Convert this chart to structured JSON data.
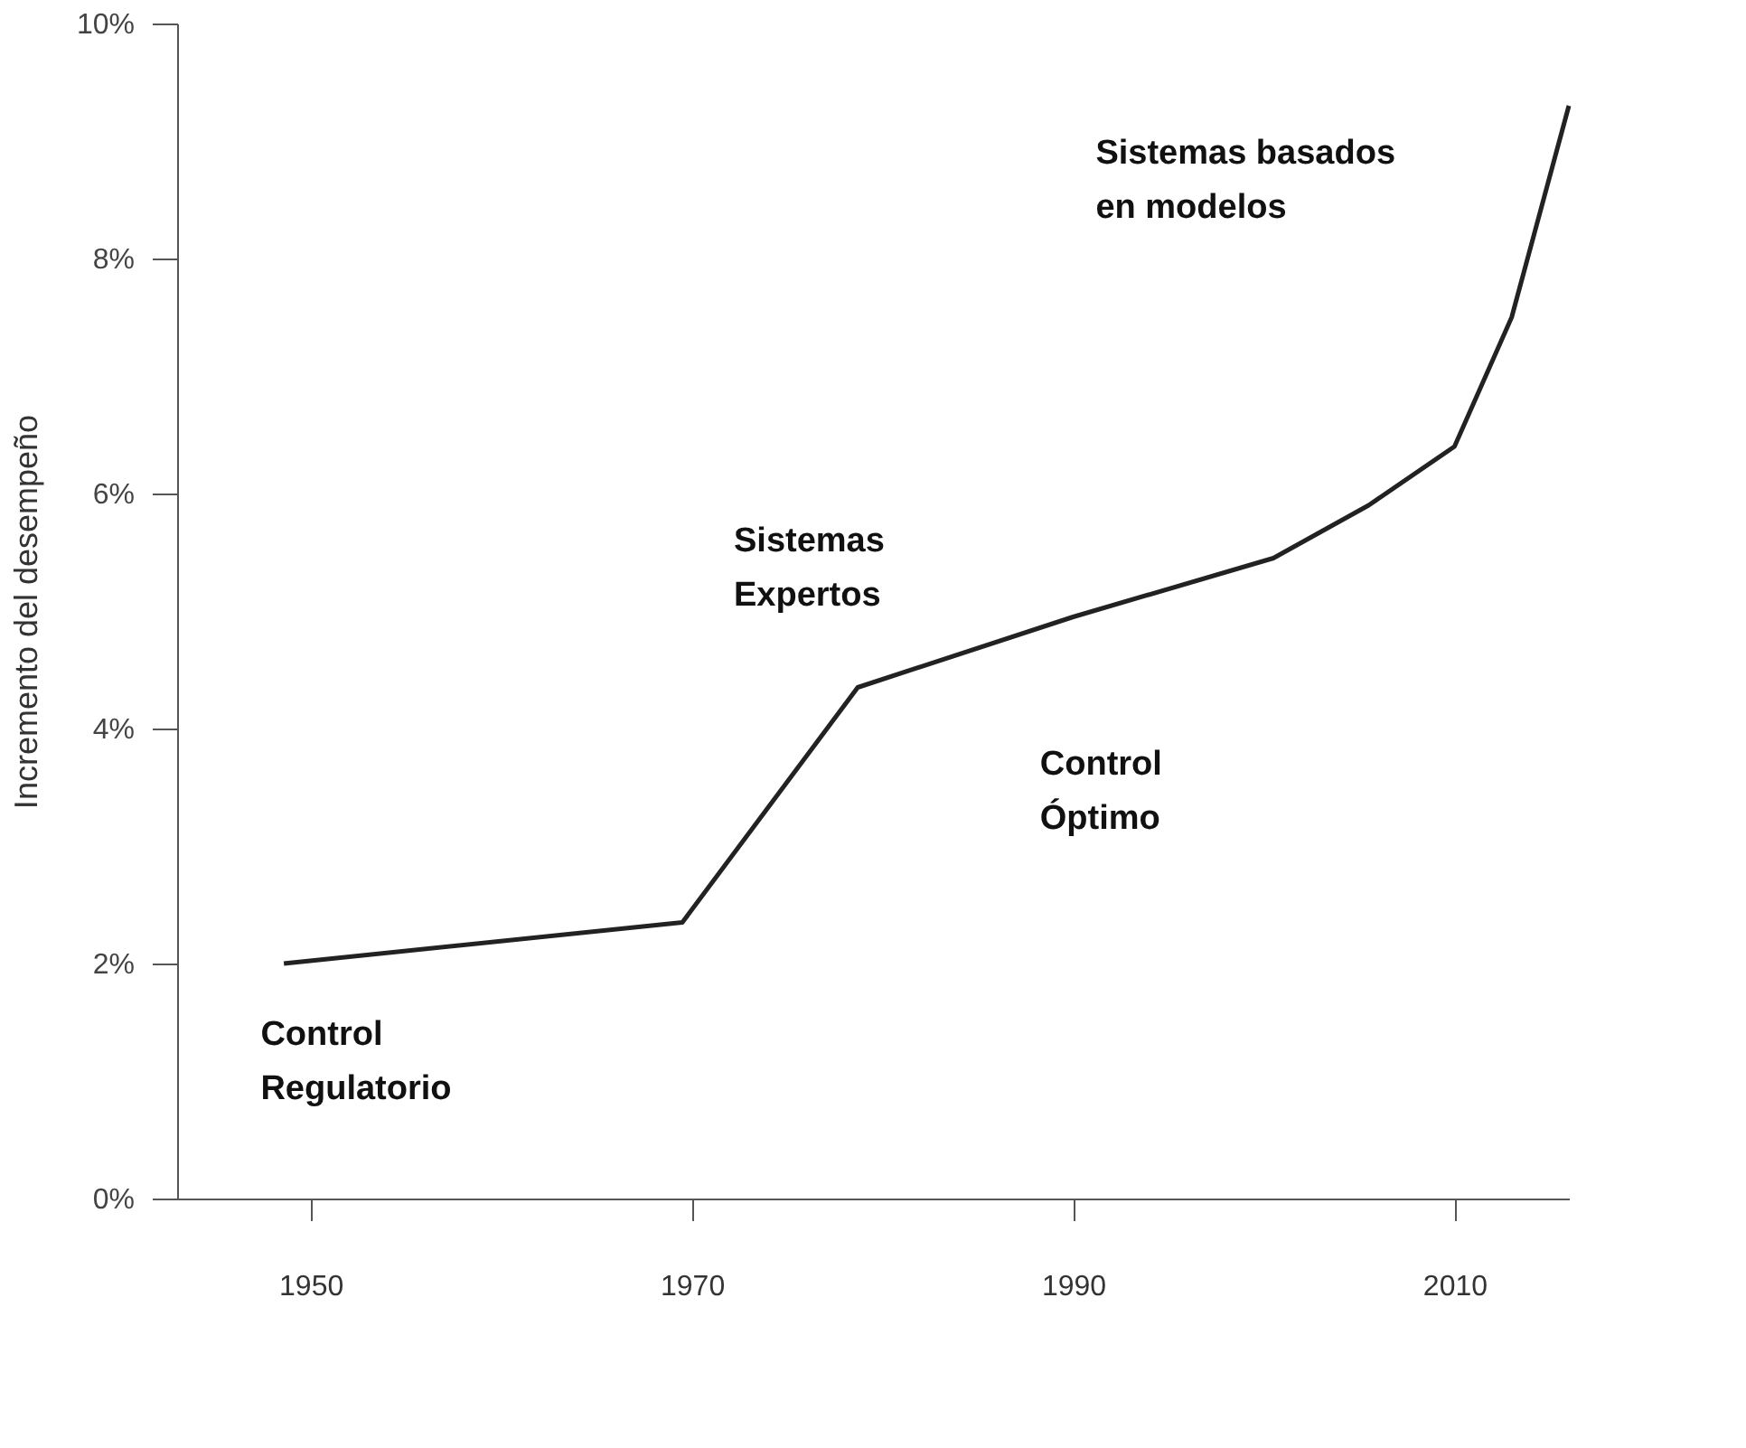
{
  "chart_data": {
    "type": "line",
    "ylabel": "Incremento del desempeño",
    "x": [
      1948.6,
      1969.5,
      1978.7,
      1990,
      2000.5,
      2005.5,
      2010,
      2013,
      2016
    ],
    "values": [
      2.0,
      2.35,
      4.35,
      4.95,
      5.45,
      5.9,
      6.4,
      7.5,
      9.3
    ],
    "color": "#222222",
    "line_style": "solid",
    "marker": "none",
    "grid": false,
    "xlim": [
      1943,
      2016
    ],
    "ylim": [
      0,
      10
    ],
    "xticks": [
      1950,
      1970,
      1990,
      2010
    ],
    "yticks": [
      {
        "value": 0,
        "label": "0%"
      },
      {
        "value": 2,
        "label": "2%"
      },
      {
        "value": 4,
        "label": "4%"
      },
      {
        "value": 6,
        "label": "6%"
      },
      {
        "value": 8,
        "label": "8%"
      },
      {
        "value": 10,
        "label": "10%"
      }
    ],
    "annotations": [
      "Control\nRegulatorio",
      "Sistemas\nExpertos",
      "Control\nÓptimo",
      "Sistemas basados\nen modelos"
    ]
  }
}
